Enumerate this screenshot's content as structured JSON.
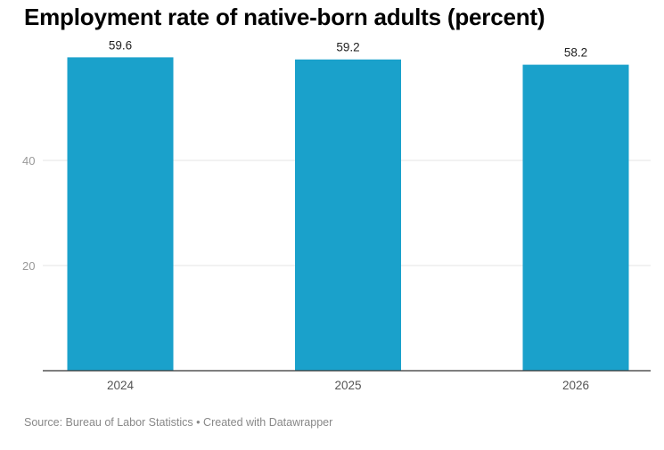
{
  "title": "Employment rate of native-born adults (percent)",
  "footer": {
    "source": "Source: Bureau of Labor Statistics",
    "separator": "•",
    "credit": "Created with Datawrapper"
  },
  "colors": {
    "bar": "#1aa1cb",
    "gridline": "#e6e6e6",
    "axis": "#333333",
    "tick_label": "#999999",
    "category_label": "#555555",
    "value_label": "#222222"
  },
  "chart_data": {
    "type": "bar",
    "categories": [
      "2024",
      "2025",
      "2026"
    ],
    "values": [
      59.6,
      59.2,
      58.2
    ],
    "yticks": [
      20,
      40
    ],
    "ylim": [
      0,
      60
    ],
    "grid": true,
    "legend": "none"
  }
}
